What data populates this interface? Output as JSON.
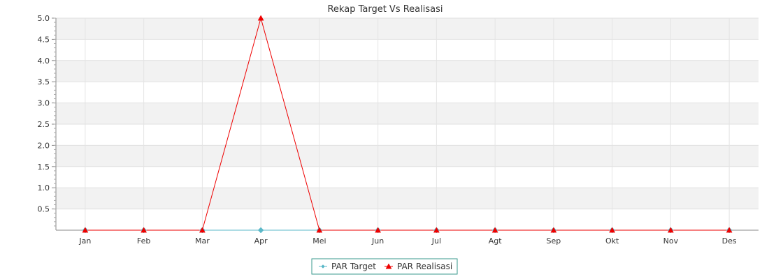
{
  "chart_data": {
    "type": "line",
    "title": "Rekap Target Vs Realisasi",
    "xlabel": "",
    "ylabel": "",
    "categories": [
      "Jan",
      "Feb",
      "Mar",
      "Apr",
      "Mei",
      "Jun",
      "Jul",
      "Agt",
      "Sep",
      "Okt",
      "Nov",
      "Des"
    ],
    "ylim": [
      0,
      5
    ],
    "yticks": [
      "0.5",
      "1.0",
      "1.5",
      "2.0",
      "2.5",
      "3.0",
      "3.5",
      "4.0",
      "4.5",
      "5.0"
    ],
    "grid": true,
    "legend_position": "bottom-center",
    "series": [
      {
        "name": "PAR Target",
        "color": "#5bb8c8",
        "marker": "diamond",
        "values": [
          0,
          0,
          0,
          0,
          0,
          0,
          0,
          0,
          0,
          0,
          0,
          0
        ]
      },
      {
        "name": "PAR Realisasi",
        "color": "#ee0000",
        "marker": "triangle",
        "values": [
          0,
          0,
          0,
          5,
          0,
          0,
          0,
          0,
          0,
          0,
          0,
          0
        ]
      }
    ]
  }
}
